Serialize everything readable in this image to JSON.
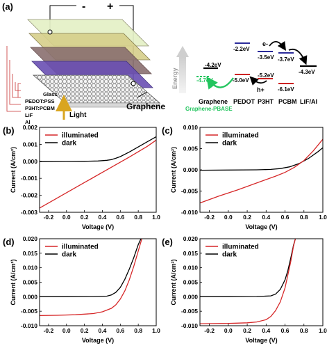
{
  "panel_a": {
    "label": "(a)",
    "device": {
      "minus": "-",
      "plus": "+",
      "layers": [
        "Glass",
        "PEDOT:PSS",
        "P3HT:PCBM",
        "LiF",
        "Al"
      ],
      "light": "Light",
      "graphene": "Graphene"
    },
    "energy": {
      "axis_label": "Energy",
      "levels": [
        {
          "value": "-4.2eV",
          "color": "#000000"
        },
        {
          "value": "-4.7eV",
          "color": "#22c55e"
        },
        {
          "value": "-5.0eV",
          "color": "#cc2222"
        },
        {
          "value": "-5.2eV",
          "color": "#cc2222"
        },
        {
          "value": "-2.2eV",
          "color": "#2a2a9a"
        },
        {
          "value": "-3.5eV",
          "color": "#2a2a9a"
        },
        {
          "value": "-3.7eV",
          "color": "#2a2a9a"
        },
        {
          "value": "-6.1eV",
          "color": "#cc2222"
        },
        {
          "value": "-4.3eV",
          "color": "#000000"
        }
      ],
      "electron": "e-",
      "hole": "h+",
      "materials": [
        "Graphene",
        "PEDOT",
        "P3HT",
        "PCBM",
        "LiF/Al"
      ],
      "graphene_pbase": "Graphene-PBASE"
    }
  },
  "colors": {
    "illuminated": "#d62728",
    "dark": "#000000"
  },
  "chart_data": [
    {
      "panel": "(b)",
      "type": "line",
      "xlabel": "Voltage (V)",
      "ylabel": "Current (A/cm²)",
      "xlim": [
        -0.3,
        1.0
      ],
      "ylim": [
        -0.003,
        0.002
      ],
      "xticks": [
        -0.2,
        0.0,
        0.2,
        0.4,
        0.6,
        0.8,
        1.0
      ],
      "xtick_labels": [
        "-0.2",
        "0.0",
        "0.2",
        "0.4",
        "0.6",
        "0.8",
        "1.0"
      ],
      "yticks": [
        -0.003,
        -0.002,
        -0.001,
        0.0,
        0.001,
        0.002
      ],
      "ytick_labels": [
        "-0.003",
        "-0.002",
        "-0.001",
        "0.000",
        "0.001",
        "0.002"
      ],
      "legend": "top-left",
      "series": [
        {
          "name": "illuminated",
          "x": [
            -0.3,
            -0.1,
            0.1,
            0.3,
            0.5,
            0.7,
            0.9,
            1.0
          ],
          "y": [
            -0.00275,
            -0.00215,
            -0.00155,
            -0.00095,
            -0.00035,
            0.00025,
            0.00088,
            0.00125
          ]
        },
        {
          "name": "dark",
          "x": [
            -0.3,
            0.0,
            0.2,
            0.35,
            0.45,
            0.5,
            0.55,
            0.6,
            0.7,
            0.8,
            0.9,
            1.0
          ],
          "y": [
            -2e-05,
            -1e-05,
            0.0,
            2e-05,
            6e-05,
            0.0001,
            0.00018,
            0.00028,
            0.00055,
            0.00085,
            0.00115,
            0.00145
          ]
        }
      ]
    },
    {
      "panel": "(c)",
      "type": "line",
      "xlabel": "Voltage (V)",
      "ylabel": "Current (A/cm²)",
      "xlim": [
        -0.3,
        1.0
      ],
      "ylim": [
        -0.01,
        0.01
      ],
      "xticks": [
        -0.2,
        0.0,
        0.2,
        0.4,
        0.6,
        0.8,
        1.0
      ],
      "xtick_labels": [
        "-0.2",
        "0.0",
        "0.2",
        "0.4",
        "0.6",
        "0.8",
        "1.0"
      ],
      "yticks": [
        -0.01,
        -0.005,
        0.0,
        0.005,
        0.01
      ],
      "ytick_labels": [
        "-0.010",
        "-0.005",
        "0.000",
        "0.005",
        "0.010"
      ],
      "legend": "top-left",
      "series": [
        {
          "name": "illuminated",
          "x": [
            -0.3,
            -0.1,
            0.1,
            0.3,
            0.5,
            0.6,
            0.7,
            0.8,
            0.9,
            1.0
          ],
          "y": [
            -0.0078,
            -0.0062,
            -0.0047,
            -0.0031,
            -0.0015,
            -0.0006,
            0.0006,
            0.0022,
            0.0045,
            0.0072
          ]
        },
        {
          "name": "dark",
          "x": [
            -0.3,
            0.0,
            0.3,
            0.45,
            0.55,
            0.65,
            0.75,
            0.85,
            0.95,
            1.0
          ],
          "y": [
            -0.0001,
            -5e-05,
            0.0,
            0.0001,
            0.0003,
            0.0007,
            0.0015,
            0.0027,
            0.0043,
            0.0052
          ]
        }
      ]
    },
    {
      "panel": "(d)",
      "type": "line",
      "xlabel": "Voltage (V)",
      "ylabel": "Current (A/cm²)",
      "xlim": [
        -0.3,
        1.0
      ],
      "ylim": [
        -0.01,
        0.02
      ],
      "xticks": [
        -0.2,
        0.0,
        0.2,
        0.4,
        0.6,
        0.8,
        1.0
      ],
      "xtick_labels": [
        "-0.2",
        "0.0",
        "0.2",
        "0.4",
        "0.6",
        "0.8",
        "1.0"
      ],
      "yticks": [
        -0.01,
        -0.005,
        0.0,
        0.005,
        0.01,
        0.015,
        0.02
      ],
      "ytick_labels": [
        "-0.010",
        "-0.005",
        "0.000",
        "0.005",
        "0.010",
        "0.015",
        "0.020"
      ],
      "legend": "top-left",
      "series": [
        {
          "name": "illuminated",
          "x": [
            -0.3,
            -0.1,
            0.1,
            0.3,
            0.4,
            0.5,
            0.55,
            0.6,
            0.65,
            0.7,
            0.75,
            0.8,
            0.84
          ],
          "y": [
            -0.0065,
            -0.0064,
            -0.0062,
            -0.0058,
            -0.0052,
            -0.004,
            -0.0028,
            -0.0008,
            0.002,
            0.0058,
            0.0105,
            0.0158,
            0.02
          ]
        },
        {
          "name": "dark",
          "x": [
            -0.3,
            0.0,
            0.3,
            0.45,
            0.5,
            0.55,
            0.6,
            0.65,
            0.7,
            0.75,
            0.8,
            0.83
          ],
          "y": [
            0.0,
            0.0,
            5e-05,
            0.0002,
            0.0006,
            0.0015,
            0.0032,
            0.006,
            0.0095,
            0.0135,
            0.018,
            0.02
          ]
        }
      ]
    },
    {
      "panel": "(e)",
      "type": "line",
      "xlabel": "Voltage (V)",
      "ylabel": "Current (A/cm²)",
      "xlim": [
        -0.3,
        1.0
      ],
      "ylim": [
        -0.01,
        0.02
      ],
      "xticks": [
        -0.2,
        0.0,
        0.2,
        0.4,
        0.6,
        0.8,
        1.0
      ],
      "xtick_labels": [
        "-0.2",
        "0.0",
        "0.2",
        "0.4",
        "0.6",
        "0.8",
        "1.0"
      ],
      "yticks": [
        -0.01,
        -0.005,
        0.0,
        0.005,
        0.01,
        0.015,
        0.02
      ],
      "ytick_labels": [
        "-0.010",
        "-0.005",
        "0.000",
        "0.005",
        "0.010",
        "0.015",
        "0.020"
      ],
      "legend": "top-left",
      "series": [
        {
          "name": "illuminated",
          "x": [
            -0.3,
            0.0,
            0.2,
            0.3,
            0.4,
            0.45,
            0.5,
            0.55,
            0.6,
            0.63,
            0.66,
            0.69,
            0.71
          ],
          "y": [
            -0.0093,
            -0.0092,
            -0.009,
            -0.0087,
            -0.0079,
            -0.0068,
            -0.0048,
            -0.0018,
            0.003,
            0.0075,
            0.012,
            0.0175,
            0.02
          ]
        },
        {
          "name": "dark",
          "x": [
            -0.3,
            0.0,
            0.3,
            0.45,
            0.5,
            0.55,
            0.6,
            0.63,
            0.66,
            0.69,
            0.71
          ],
          "y": [
            0.0,
            0.0,
            5e-05,
            0.0003,
            0.0009,
            0.0025,
            0.0058,
            0.009,
            0.0132,
            0.0178,
            0.02
          ]
        }
      ]
    }
  ]
}
